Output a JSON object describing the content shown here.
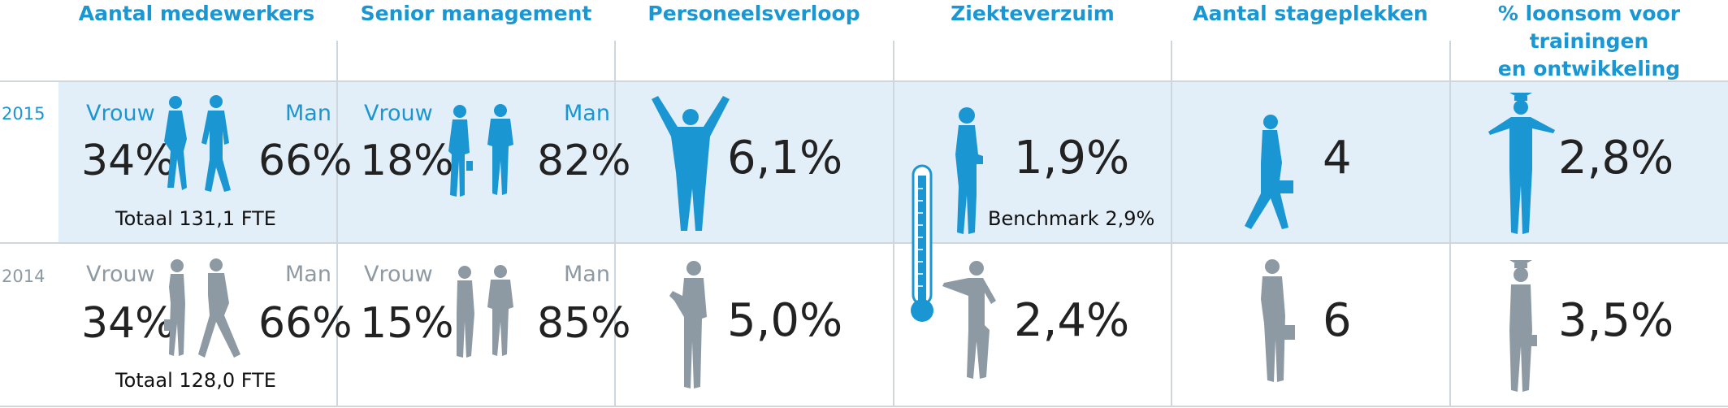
{
  "headers": {
    "employees": "Aantal medewerkers",
    "senior": "Senior management",
    "turnover": "Personeelsverloop",
    "sickness": "Ziekteverzuim",
    "internships": "Aantal stageplekken",
    "training_line1": "% loonsom voor trainingen",
    "training_line2": "en ontwikkeling"
  },
  "colors": {
    "accent": "#1a96d3",
    "grey": "#8e9aa3",
    "highlight_row": "#e3eff8"
  },
  "rows": {
    "y2015": {
      "year": "2015",
      "employees": {
        "vrouw_label": "Vrouw",
        "man_label": "Man",
        "vrouw": "34%",
        "man": "66%",
        "total": "Totaal 131,1 FTE"
      },
      "senior": {
        "vrouw_label": "Vrouw",
        "man_label": "Man",
        "vrouw": "18%",
        "man": "82%"
      },
      "turnover": "6,1%",
      "sickness": "1,9%",
      "benchmark": "Benchmark 2,9%",
      "internships": "4",
      "training": "2,8%"
    },
    "y2014": {
      "year": "2014",
      "employees": {
        "vrouw_label": "Vrouw",
        "man_label": "Man",
        "vrouw": "34%",
        "man": "66%",
        "total": "Totaal 128,0 FTE"
      },
      "senior": {
        "vrouw_label": "Vrouw",
        "man_label": "Man",
        "vrouw": "15%",
        "man": "85%"
      },
      "turnover": "5,0%",
      "sickness": "2,4%",
      "internships": "6",
      "training": "3,5%"
    }
  },
  "icons": [
    "woman-walking-icon",
    "man-walking-icon",
    "businesswoman-icon",
    "businessman-icon",
    "arms-raised-man-icon",
    "woman-with-cup-icon",
    "thermometer-icon",
    "woman-with-briefcase-icon",
    "graduate-woman-icon"
  ]
}
